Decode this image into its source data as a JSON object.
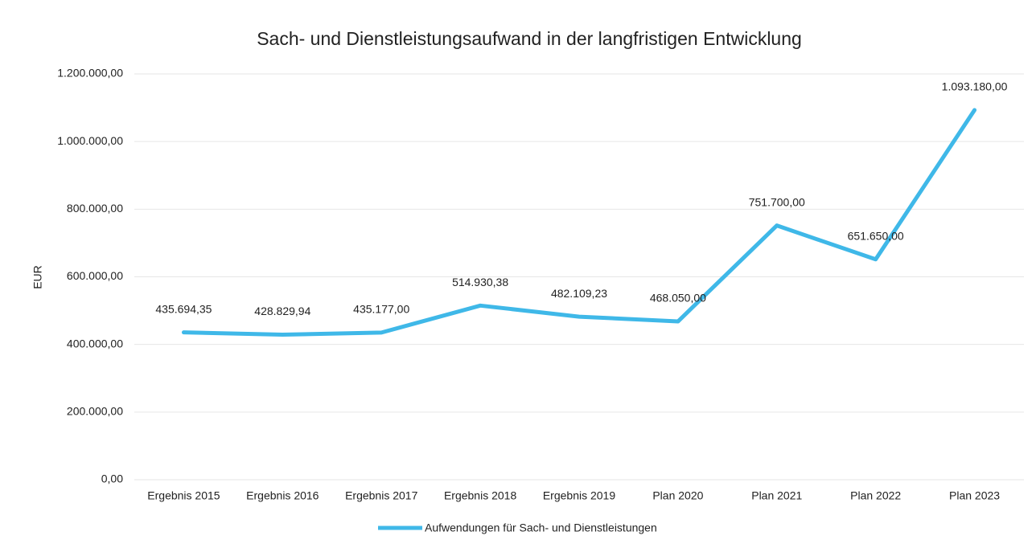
{
  "chart_data": {
    "type": "line",
    "title": "Sach- und Dienstleistungsaufwand in der langfristigen Entwicklung",
    "y_label": "EUR",
    "categories": [
      "Ergebnis 2015",
      "Ergebnis 2016",
      "Ergebnis 2017",
      "Ergebnis 2018",
      "Ergebnis 2019",
      "Plan 2020",
      "Plan 2021",
      "Plan 2022",
      "Plan 2023"
    ],
    "series": [
      {
        "name": "Aufwendungen für Sach- und Dienstleistungen",
        "color": "#3fb8e8",
        "values": [
          435694.35,
          428829.94,
          435177.0,
          514930.38,
          482109.23,
          468050.0,
          751700.0,
          651650.0,
          1093180.0
        ],
        "value_labels": [
          "435.694,35",
          "428.829,94",
          "435.177,00",
          "514.930,38",
          "482.109,23",
          "468.050,00",
          "751.700,00",
          "651.650,00",
          "1.093.180,00"
        ]
      }
    ],
    "ylim": [
      0,
      1200000
    ],
    "yticks": [
      {
        "value": 0,
        "label": "0,00"
      },
      {
        "value": 200000,
        "label": "200.000,00"
      },
      {
        "value": 400000,
        "label": "400.000,00"
      },
      {
        "value": 600000,
        "label": "600.000,00"
      },
      {
        "value": 800000,
        "label": "800.000,00"
      },
      {
        "value": 1000000,
        "label": "1.000.000,00"
      },
      {
        "value": 1200000,
        "label": "1.200.000,00"
      }
    ],
    "grid": true,
    "legend": "bottom"
  }
}
